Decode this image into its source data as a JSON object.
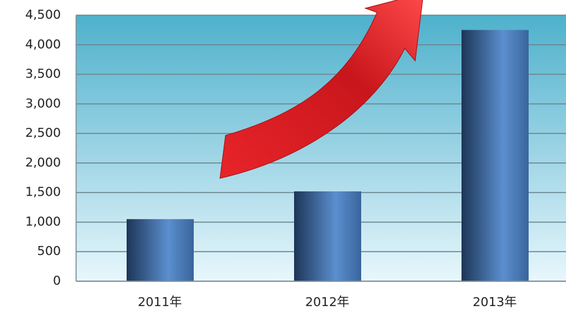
{
  "chart_data": {
    "type": "bar",
    "categories": [
      "2011年",
      "2012年",
      "2013年"
    ],
    "values": [
      1050,
      1520,
      4250
    ],
    "color": "#5b8fcf",
    "ylim": [
      0,
      4500
    ],
    "yticks": [
      0,
      500,
      {
        "value": 1000,
        "label": "1,000"
      },
      {
        "value": 1500,
        "label": "1,500"
      },
      {
        "value": 2000,
        "label": "2,000"
      },
      {
        "value": 2500,
        "label": "2,500"
      },
      {
        "value": 3000,
        "label": "3,000"
      },
      {
        "value": 3500,
        "label": "3,500"
      },
      {
        "value": 4000,
        "label": "4,000"
      },
      {
        "value": 4500,
        "label": "4,500"
      }
    ],
    "grid": true
  }
}
